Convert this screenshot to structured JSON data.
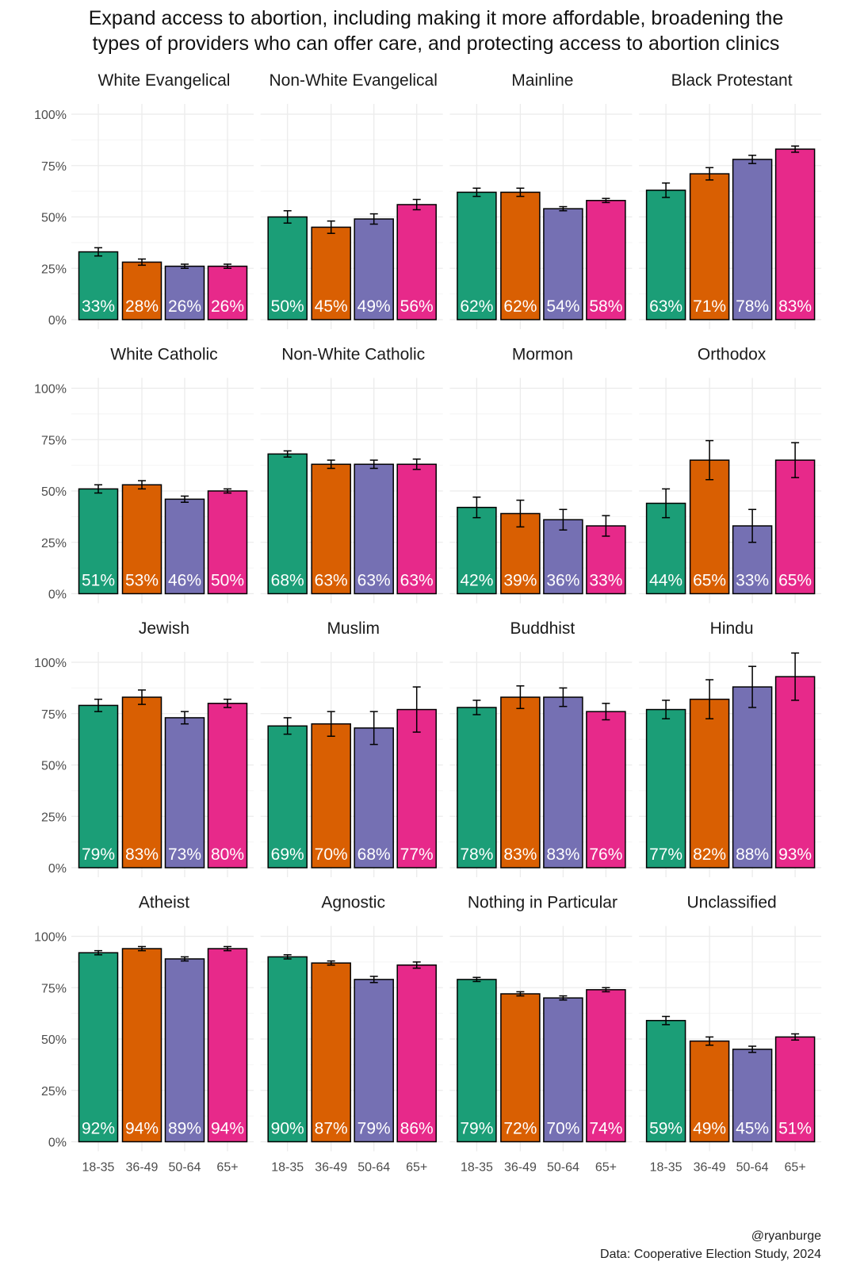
{
  "chart_data": {
    "type": "bar",
    "title_lines": [
      "Expand access to abortion, including making it more affordable, broadening the",
      "types of providers who can offer care, and protecting access to abortion clinics"
    ],
    "categories": [
      "18-35",
      "36-49",
      "50-64",
      "65+"
    ],
    "colors": [
      "#1b9e77",
      "#d95f02",
      "#7570b3",
      "#e7298a"
    ],
    "ylim": [
      0,
      100
    ],
    "y_ticks": [
      0,
      25,
      50,
      75,
      100
    ],
    "y_tick_labels": [
      "0%",
      "25%",
      "50%",
      "75%",
      "100%"
    ],
    "grid": true,
    "panels": [
      {
        "name": "White Evangelical",
        "values": [
          33,
          28,
          26,
          26
        ],
        "labels": [
          "33%",
          "28%",
          "26%",
          "26%"
        ],
        "moe": [
          2,
          1.5,
          1,
          1
        ]
      },
      {
        "name": "Non-White Evangelical",
        "values": [
          50,
          45,
          49,
          56
        ],
        "labels": [
          "50%",
          "45%",
          "49%",
          "56%"
        ],
        "moe": [
          3,
          3,
          2.5,
          2.5
        ]
      },
      {
        "name": "Mainline",
        "values": [
          62,
          62,
          54,
          58
        ],
        "labels": [
          "62%",
          "62%",
          "54%",
          "58%"
        ],
        "moe": [
          2,
          2,
          1,
          1
        ]
      },
      {
        "name": "Black Protestant",
        "values": [
          63,
          71,
          78,
          83
        ],
        "labels": [
          "63%",
          "71%",
          "78%",
          "83%"
        ],
        "moe": [
          3.5,
          3,
          2,
          1.5
        ]
      },
      {
        "name": "White Catholic",
        "values": [
          51,
          53,
          46,
          50
        ],
        "labels": [
          "51%",
          "53%",
          "46%",
          "50%"
        ],
        "moe": [
          2,
          2,
          1.5,
          1
        ]
      },
      {
        "name": "Non-White Catholic",
        "values": [
          68,
          63,
          63,
          63
        ],
        "labels": [
          "68%",
          "63%",
          "63%",
          "63%"
        ],
        "moe": [
          1.5,
          2,
          2,
          2.5
        ]
      },
      {
        "name": "Mormon",
        "values": [
          42,
          39,
          36,
          33
        ],
        "labels": [
          "42%",
          "39%",
          "36%",
          "33%"
        ],
        "moe": [
          5,
          6.5,
          5,
          5
        ]
      },
      {
        "name": "Orthodox",
        "values": [
          44,
          65,
          33,
          65
        ],
        "labels": [
          "44%",
          "65%",
          "33%",
          "65%"
        ],
        "moe": [
          7,
          9.5,
          8,
          8.5
        ]
      },
      {
        "name": "Jewish",
        "values": [
          79,
          83,
          73,
          80
        ],
        "labels": [
          "79%",
          "83%",
          "73%",
          "80%"
        ],
        "moe": [
          3,
          3.5,
          3,
          2
        ]
      },
      {
        "name": "Muslim",
        "values": [
          69,
          70,
          68,
          77
        ],
        "labels": [
          "69%",
          "70%",
          "68%",
          "77%"
        ],
        "moe": [
          4,
          6,
          8,
          11
        ]
      },
      {
        "name": "Buddhist",
        "values": [
          78,
          83,
          83,
          76
        ],
        "labels": [
          "78%",
          "83%",
          "83%",
          "76%"
        ],
        "moe": [
          3.5,
          5.5,
          4.5,
          4
        ]
      },
      {
        "name": "Hindu",
        "values": [
          77,
          82,
          88,
          93
        ],
        "labels": [
          "77%",
          "82%",
          "88%",
          "93%"
        ],
        "moe": [
          4.5,
          9.5,
          10,
          11.5
        ]
      },
      {
        "name": "Atheist",
        "values": [
          92,
          94,
          89,
          94
        ],
        "labels": [
          "92%",
          "94%",
          "89%",
          "94%"
        ],
        "moe": [
          1,
          1,
          1,
          1
        ]
      },
      {
        "name": "Agnostic",
        "values": [
          90,
          87,
          79,
          86
        ],
        "labels": [
          "90%",
          "87%",
          "79%",
          "86%"
        ],
        "moe": [
          1,
          1,
          1.5,
          1.5
        ]
      },
      {
        "name": "Nothing in Particular",
        "values": [
          79,
          72,
          70,
          74
        ],
        "labels": [
          "79%",
          "72%",
          "70%",
          "74%"
        ],
        "moe": [
          1,
          1,
          1,
          1
        ]
      },
      {
        "name": "Unclassified",
        "values": [
          59,
          49,
          45,
          51
        ],
        "labels": [
          "59%",
          "49%",
          "45%",
          "51%"
        ],
        "moe": [
          2,
          2,
          1.5,
          1.5
        ]
      }
    ],
    "caption_lines": [
      "@ryanburge",
      "Data: Cooperative Election Study, 2024"
    ]
  }
}
